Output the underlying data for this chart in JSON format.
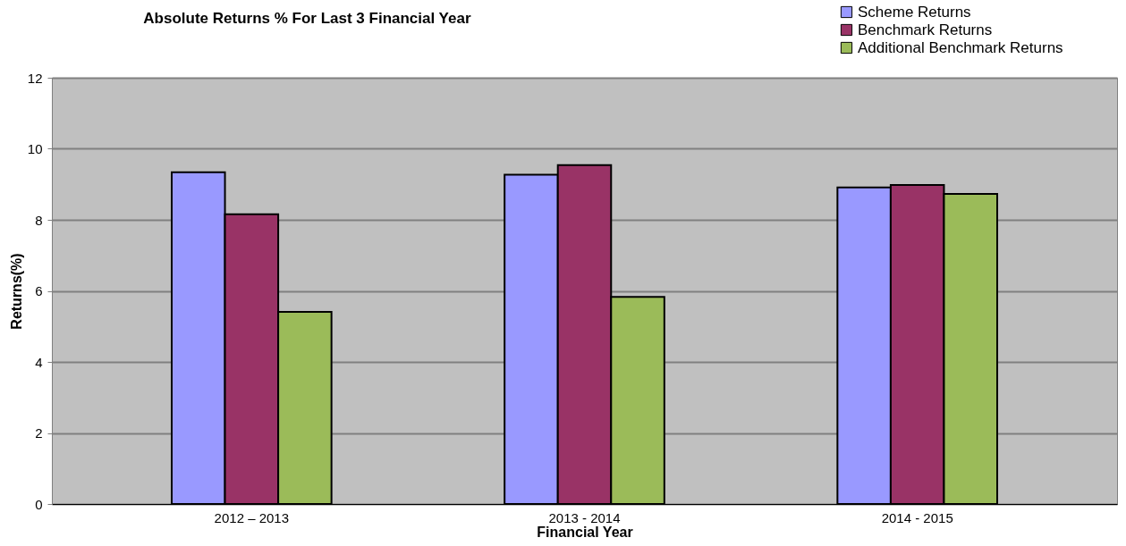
{
  "chart_data": {
    "type": "bar",
    "title": "Absolute Returns  %  For Last 3 Financial Year",
    "xlabel": "Financial Year",
    "ylabel": "Returns(%)",
    "categories": [
      "2012 – 2013",
      "2013 - 2014",
      "2014 - 2015"
    ],
    "series": [
      {
        "name": "Scheme Returns",
        "color": "#9999ff",
        "values": [
          9.34,
          9.27,
          8.91
        ]
      },
      {
        "name": "Benchmark Returns",
        "color": "#993366",
        "values": [
          8.16,
          9.54,
          8.98
        ]
      },
      {
        "name": "Additional Benchmark Returns",
        "color": "#9bbb59",
        "values": [
          5.41,
          5.83,
          8.73
        ]
      }
    ],
    "ylim": [
      0,
      12
    ],
    "yticks": [
      0,
      2,
      4,
      6,
      8,
      10,
      12
    ],
    "grid": "y",
    "legend": "top right"
  }
}
